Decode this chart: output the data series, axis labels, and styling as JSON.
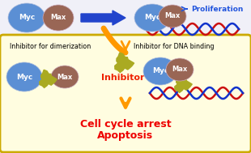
{
  "bg_color": "#f0f0f8",
  "box_facecolor": "#fffde0",
  "box_edgecolor": "#ccaa00",
  "myc_color_top": "#5b8fd4",
  "myc_color_grad": "#5b8fd4",
  "max_color_top": "#996655",
  "inhibitor_color": "#aaaa22",
  "arrow_blue": "#2244cc",
  "arrow_orange": "#ff9900",
  "dna_blue": "#1133cc",
  "dna_red": "#cc1111",
  "proliferation_color": "#2255dd",
  "inhibitor_text_color": "#ee2200",
  "outcome_color": "#ee0000",
  "label_myc": "Myc",
  "label_max": "Max",
  "proliferation_text": "Proliferation",
  "inhibitor_text": "Inhibitor",
  "label_dimerization": "Inhibitor for dimerization",
  "label_dna_binding": "Inhibitor for DNA binding",
  "outcome_line1": "Cell cycle arrest",
  "outcome_line2": "Apoptosis"
}
